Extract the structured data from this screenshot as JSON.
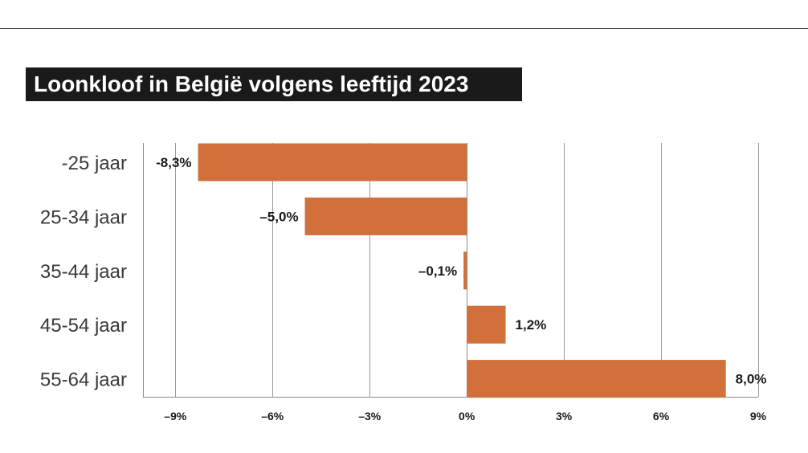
{
  "chart_data": {
    "type": "bar",
    "orientation": "horizontal",
    "title": "Loonkloof in België volgens leeftijd 2023",
    "categories": [
      "-25 jaar",
      "25-34 jaar",
      "35-44 jaar",
      "45-54 jaar",
      "55-64 jaar"
    ],
    "values": [
      -8.3,
      -5.0,
      -0.1,
      1.2,
      8.0
    ],
    "value_labels": [
      "-8,3%",
      "–5,0%",
      "–0,1%",
      "1,2%",
      "8,0%"
    ],
    "xlim": [
      -10,
      9
    ],
    "ticks": [
      -9,
      -6,
      -3,
      0,
      3,
      6,
      9
    ],
    "tick_labels": [
      "–9%",
      "–6%",
      "–3%",
      "0%",
      "3%",
      "6%",
      "9%"
    ],
    "xlabel": "",
    "ylabel": "",
    "grid": true,
    "bar_color": "#d2703c"
  }
}
